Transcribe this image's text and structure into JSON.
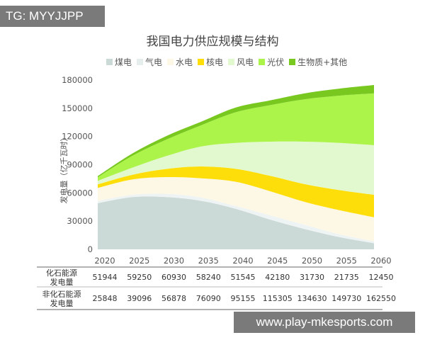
{
  "watermark_top": "TG: MYYJJPP",
  "watermark_bottom": "www.play-mkesports.com",
  "chart_data": {
    "type": "area",
    "stacked": true,
    "title": "我国电力供应规模与结构",
    "ylabel": "发电量（亿千瓦时）",
    "xlabel": "",
    "ylim": [
      0,
      180000
    ],
    "yticks": [
      "0",
      "30000",
      "60000",
      "90000",
      "120000",
      "150000",
      "180000"
    ],
    "categories": [
      "2020",
      "2025",
      "2030",
      "2035",
      "2040",
      "2045",
      "2050",
      "2055",
      "2060"
    ],
    "legend_position": "top",
    "grid": false,
    "series": [
      {
        "name": "煤电",
        "color": "#cbd9d7",
        "values": [
          49000,
          55500,
          55500,
          51500,
          43000,
          31500,
          21500,
          13000,
          6500
        ]
      },
      {
        "name": "气电",
        "color": "#eef3f3",
        "values": [
          2500,
          2500,
          3500,
          3500,
          3000,
          4500,
          4500,
          3000,
          2000
        ]
      },
      {
        "name": "水电",
        "color": "#fdf8e6",
        "values": [
          13800,
          16300,
          17800,
          20500,
          25800,
          25700,
          24400,
          25600,
          25600
        ]
      },
      {
        "name": "核电",
        "color": "#fede0a",
        "values": [
          3800,
          5000,
          8800,
          12600,
          13800,
          16400,
          18900,
          21400,
          23900
        ]
      },
      {
        "name": "风电",
        "color": "#e2f9cf",
        "values": [
          3700,
          7500,
          13800,
          21300,
          27600,
          36400,
          45200,
          50200,
          52700
        ]
      },
      {
        "name": "光伏",
        "color": "#adf44a",
        "values": [
          3800,
          12600,
          17500,
          22600,
          32600,
          38900,
          45100,
          50200,
          55200
        ]
      },
      {
        "name": "生物质+其他",
        "color": "#78c820",
        "values": [
          1300,
          2500,
          3800,
          3800,
          5000,
          5000,
          6300,
          7500,
          8800
        ]
      }
    ],
    "table": {
      "rows": [
        {
          "label_line1": "化石能源",
          "label_line2": "发电量",
          "values": [
            "51944",
            "59250",
            "60930",
            "58240",
            "51545",
            "42180",
            "31730",
            "21735",
            "12450"
          ]
        },
        {
          "label_line1": "非化石能源",
          "label_line2": "发电量",
          "values": [
            "25848",
            "39096",
            "56878",
            "76090",
            "95155",
            "115305",
            "134630",
            "149730",
            "162550"
          ]
        }
      ]
    }
  }
}
